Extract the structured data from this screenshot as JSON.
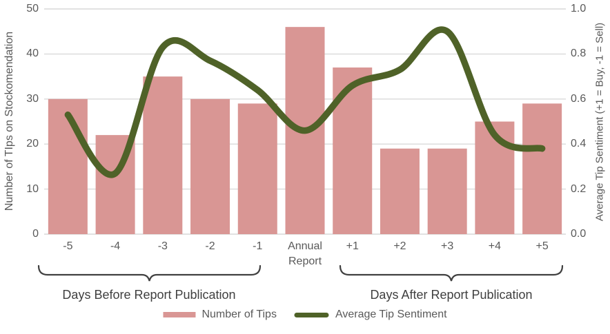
{
  "chart_data": {
    "type": "bar",
    "categories": [
      "-5",
      "-4",
      "-3",
      "-2",
      "-1",
      "Annual Report",
      "+1",
      "+2",
      "+3",
      "+4",
      "+5"
    ],
    "series": [
      {
        "name": "Number of Tips",
        "type": "bar",
        "axis": "left",
        "values": [
          30,
          22,
          35,
          30,
          29,
          46,
          37,
          19,
          19,
          25,
          29
        ],
        "color": "#d99694"
      },
      {
        "name": "Average Tip Sentiment",
        "type": "line",
        "axis": "right",
        "values": [
          0.53,
          0.27,
          0.83,
          0.77,
          0.64,
          0.46,
          0.66,
          0.73,
          0.9,
          0.44,
          0.38
        ],
        "color": "#4f6228"
      }
    ],
    "left_axis": {
      "title": "Number of TIps on Stockomendation",
      "range": [
        0,
        50
      ],
      "ticks": [
        "50",
        "40",
        "30",
        "20",
        "10",
        "0"
      ]
    },
    "right_axis": {
      "title": "Average Tip Sentiment (+1 = Buy, -1 = Sell)",
      "range": [
        0,
        1
      ],
      "ticks": [
        "1.0",
        "0.8",
        "0.6",
        "0.4",
        "0.2",
        "0.0"
      ]
    },
    "annotations": [
      {
        "label": "Days Before Report Publication",
        "span_categories": [
          "-5",
          "-1"
        ]
      },
      {
        "label": "Days After Report Publication",
        "span_categories": [
          "+1",
          "+5"
        ]
      }
    ],
    "legend_position": "bottom",
    "grid": true,
    "colors": {
      "gridline": "#d9d9d9",
      "axis_text": "#595959",
      "brace": "#404040"
    }
  }
}
